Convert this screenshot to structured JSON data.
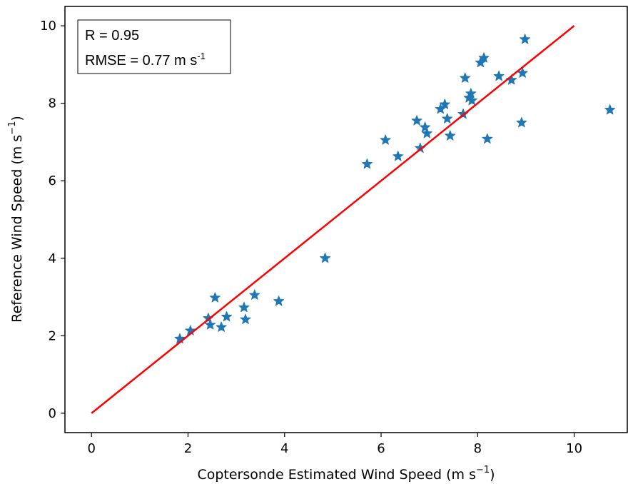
{
  "chart_data": {
    "type": "scatter",
    "xlabel": "Coptersonde Estimated Wind Speed (m s",
    "xlabel_sup": "−1",
    "xlabel_end": ")",
    "ylabel": "Reference Wind Speed (m s",
    "ylabel_sup": "−1",
    "ylabel_end": ")",
    "xlim": [
      -0.55,
      11.1
    ],
    "ylim": [
      -0.5,
      10.5
    ],
    "xticks": [
      0,
      2,
      4,
      6,
      8,
      10
    ],
    "yticks": [
      0,
      2,
      4,
      6,
      8,
      10
    ],
    "grid": false,
    "marker": "star",
    "marker_color": "#1f77b4",
    "fit_line": {
      "x": [
        0,
        10
      ],
      "y": [
        0,
        10
      ],
      "color": "#ff0000"
    },
    "stats_box": {
      "line1": "R = 0.95",
      "line2_prefix": "RMSE = 0.77 m s",
      "line2_sup": "-1"
    },
    "points": [
      [
        1.83,
        1.92
      ],
      [
        2.05,
        2.13
      ],
      [
        2.42,
        2.45
      ],
      [
        2.46,
        2.28
      ],
      [
        2.56,
        2.98
      ],
      [
        2.69,
        2.22
      ],
      [
        2.8,
        2.49
      ],
      [
        3.16,
        2.73
      ],
      [
        3.19,
        2.42
      ],
      [
        3.38,
        3.05
      ],
      [
        3.88,
        2.89
      ],
      [
        4.84,
        4.0
      ],
      [
        5.71,
        6.43
      ],
      [
        6.09,
        7.05
      ],
      [
        6.35,
        6.63
      ],
      [
        6.74,
        7.55
      ],
      [
        6.81,
        6.84
      ],
      [
        6.91,
        7.38
      ],
      [
        6.95,
        7.22
      ],
      [
        7.23,
        7.85
      ],
      [
        7.32,
        7.97
      ],
      [
        7.37,
        7.6
      ],
      [
        7.43,
        7.16
      ],
      [
        7.7,
        7.72
      ],
      [
        7.74,
        8.65
      ],
      [
        7.82,
        8.14
      ],
      [
        7.86,
        8.25
      ],
      [
        7.88,
        8.07
      ],
      [
        8.06,
        9.05
      ],
      [
        8.13,
        9.17
      ],
      [
        8.2,
        7.08
      ],
      [
        8.44,
        8.7
      ],
      [
        8.7,
        8.6
      ],
      [
        8.91,
        7.5
      ],
      [
        8.93,
        8.78
      ],
      [
        8.98,
        9.65
      ],
      [
        10.74,
        7.83
      ]
    ]
  }
}
